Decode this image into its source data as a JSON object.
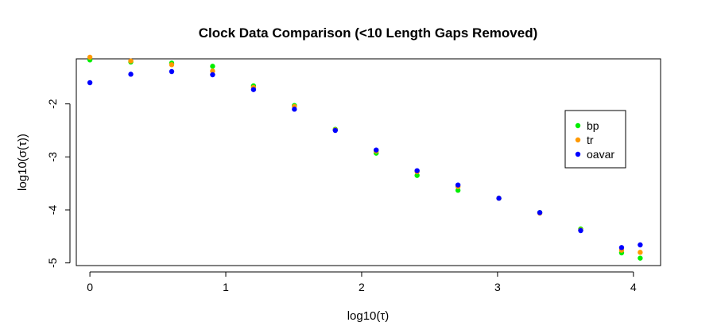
{
  "chart_data": {
    "type": "scatter",
    "title": "Clock Data Comparison (<10 Length Gaps Removed)",
    "xlabel": "log10(τ)",
    "ylabel": "log10(σ(τ))",
    "xlim": [
      -0.1,
      4.2
    ],
    "ylim": [
      -5.05,
      -1.15
    ],
    "xticks": [
      0,
      1,
      2,
      3,
      4
    ],
    "yticks": [
      -2,
      -3,
      -4,
      -5
    ],
    "grid": false,
    "legend_position": "right",
    "series": [
      {
        "name": "bp",
        "color": "#00ee00",
        "x": [
          0,
          0.301,
          0.602,
          0.903,
          1.204,
          1.505,
          1.806,
          2.107,
          2.408,
          2.709,
          3.01,
          3.311,
          3.612,
          3.913,
          4.05
        ],
        "y": [
          -1.17,
          -1.21,
          -1.23,
          -1.29,
          -1.66,
          -2.03,
          -2.48,
          -2.93,
          -3.35,
          -3.63,
          -3.78,
          -4.05,
          -4.36,
          -4.81,
          -4.91
        ]
      },
      {
        "name": "tr",
        "color": "#ff9900",
        "x": [
          0,
          0.301,
          0.602,
          0.903,
          1.204,
          1.505,
          1.806,
          2.107,
          2.408,
          2.709,
          3.01,
          3.311,
          3.612,
          3.913,
          4.05
        ],
        "y": [
          -1.12,
          -1.19,
          -1.26,
          -1.38,
          -1.69,
          -2.05,
          -2.49,
          -2.89,
          -3.28,
          -3.56,
          -3.78,
          -4.06,
          -4.38,
          -4.76,
          -4.8
        ]
      },
      {
        "name": "oavar",
        "color": "#0000ff",
        "x": [
          0,
          0.301,
          0.602,
          0.903,
          1.204,
          1.505,
          1.806,
          2.107,
          2.408,
          2.709,
          3.01,
          3.311,
          3.612,
          3.913,
          4.05
        ],
        "y": [
          -1.6,
          -1.44,
          -1.39,
          -1.45,
          -1.73,
          -2.1,
          -2.5,
          -2.87,
          -3.26,
          -3.53,
          -3.78,
          -4.05,
          -4.39,
          -4.71,
          -4.66
        ]
      }
    ]
  }
}
